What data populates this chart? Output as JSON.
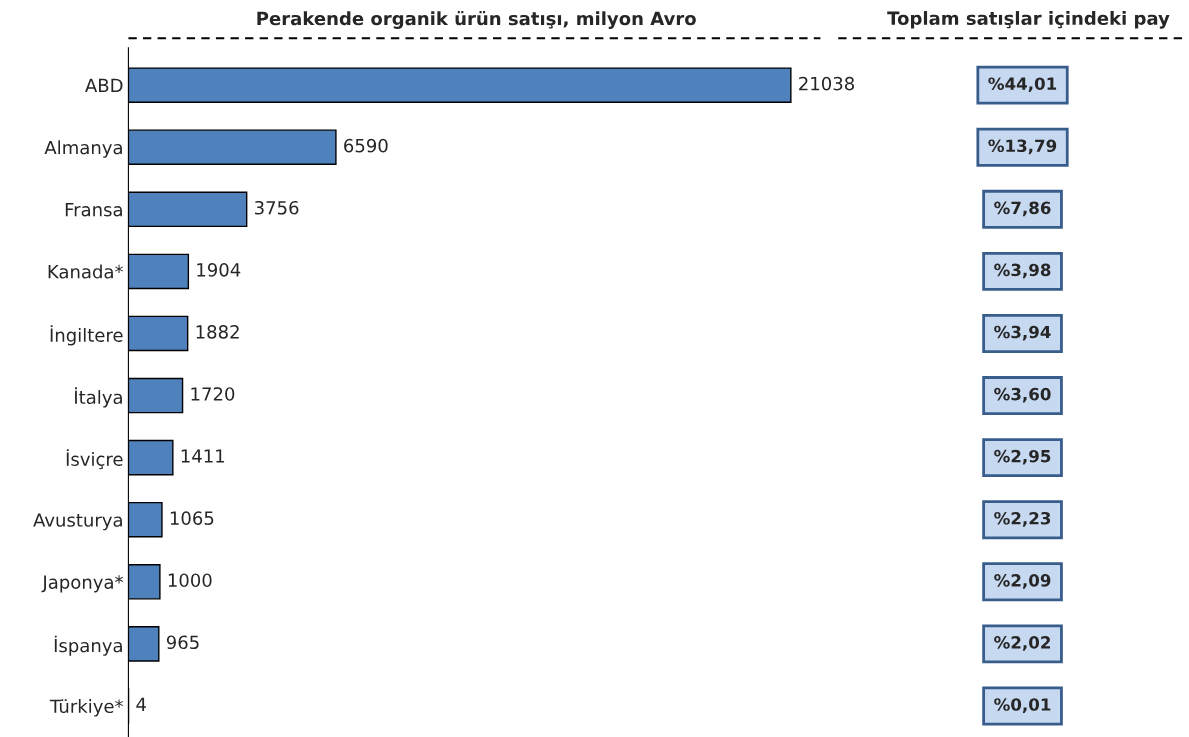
{
  "chart_data": [
    {
      "type": "bar",
      "orientation": "horizontal",
      "title": "Perakende organik ürün satışı, milyon Avro",
      "categories": [
        "ABD",
        "Almanya",
        "Fransa",
        "Kanada*",
        "İngiltere",
        "İtalya",
        "İsviçre",
        "Avusturya",
        "Japonya*",
        "İspanya",
        "Türkiye*"
      ],
      "values": [
        21038,
        6590,
        3756,
        1904,
        1882,
        1720,
        1411,
        1065,
        1000,
        965,
        4
      ],
      "color": "#4f81bd",
      "data_labels": true,
      "grid": false,
      "legend": false,
      "tick_labels": "y"
    },
    {
      "type": "other",
      "title": "Toplam satışlar içindeki pay",
      "annotations": [
        "%44,01",
        "%13,79",
        "%7,86",
        "%3,98",
        "%3,94",
        "%3,60",
        "%2,95",
        "%2,23",
        "%2,09",
        "%2,02",
        "%0,01"
      ]
    }
  ]
}
